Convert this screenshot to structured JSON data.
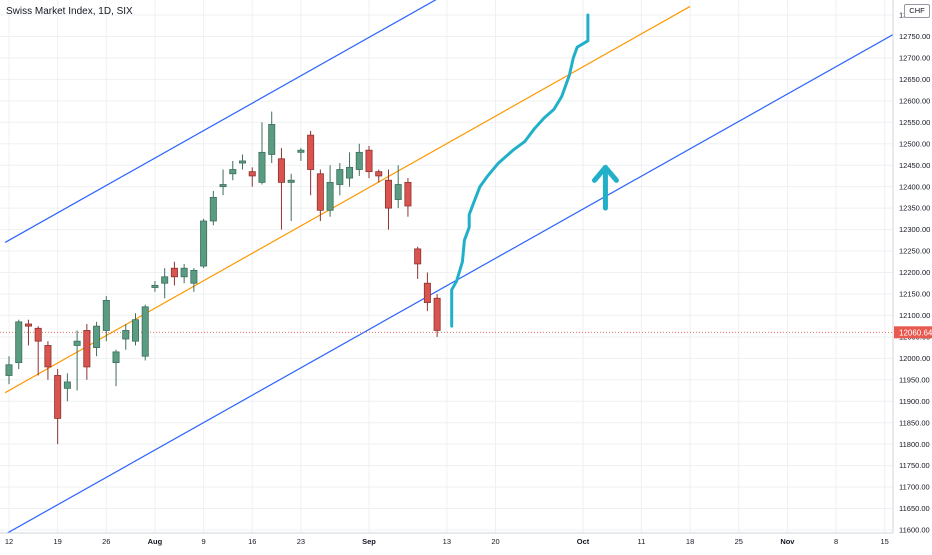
{
  "chart_data": {
    "type": "candlestick",
    "title": "Swiss Market Index, 1D, SIX",
    "currency": "CHF",
    "last_price_label": "12060.64",
    "y_ticks": [
      11600,
      11650,
      11700,
      11750,
      11800,
      11850,
      11900,
      11950,
      12000,
      12050,
      12100,
      12150,
      12200,
      12250,
      12300,
      12350,
      12400,
      12450,
      12500,
      12550,
      12600,
      12650,
      12700,
      12750,
      12800
    ],
    "y_tick_labels": [
      "11600.00",
      "11650.00",
      "11700.00",
      "11750.00",
      "11800.00",
      "11850.00",
      "11900.00",
      "11950.00",
      "12000.00",
      "12050.00",
      "12100.00",
      "12150.00",
      "12200.00",
      "12250.00",
      "12300.00",
      "12350.00",
      "12400.00",
      "12450.00",
      "12500.00",
      "12550.00",
      "12600.00",
      "12650.00",
      "12700.00",
      "12750.00",
      "12800.00"
    ],
    "x_ticks": [
      {
        "index": 0,
        "label": "12",
        "bold": false
      },
      {
        "index": 5,
        "label": "19",
        "bold": false
      },
      {
        "index": 10,
        "label": "26",
        "bold": false
      },
      {
        "index": 15,
        "label": "Aug",
        "bold": true
      },
      {
        "index": 20,
        "label": "9",
        "bold": false
      },
      {
        "index": 25,
        "label": "16",
        "bold": false
      },
      {
        "index": 30,
        "label": "23",
        "bold": false
      },
      {
        "index": 37,
        "label": "Sep",
        "bold": true
      },
      {
        "index": 45,
        "label": "13",
        "bold": false
      },
      {
        "index": 50,
        "label": "20",
        "bold": false
      },
      {
        "index": 59,
        "label": "Oct",
        "bold": true
      },
      {
        "index": 65,
        "label": "11",
        "bold": false
      },
      {
        "index": 70,
        "label": "18",
        "bold": false
      },
      {
        "index": 75,
        "label": "25",
        "bold": false
      },
      {
        "index": 80,
        "label": "Nov",
        "bold": true
      },
      {
        "index": 85,
        "label": "8",
        "bold": false
      },
      {
        "index": 90,
        "label": "15",
        "bold": false
      }
    ],
    "candles": [
      {
        "i": 0,
        "o": 11960,
        "h": 12005,
        "l": 11940,
        "c": 11985
      },
      {
        "i": 1,
        "o": 11990,
        "h": 12090,
        "l": 11975,
        "c": 12085
      },
      {
        "i": 2,
        "o": 12080,
        "h": 12090,
        "l": 12030,
        "c": 12075
      },
      {
        "i": 3,
        "o": 12070,
        "h": 12075,
        "l": 11960,
        "c": 12040
      },
      {
        "i": 4,
        "o": 12030,
        "h": 12040,
        "l": 11950,
        "c": 11980
      },
      {
        "i": 5,
        "o": 11960,
        "h": 11975,
        "l": 11800,
        "c": 11860
      },
      {
        "i": 6,
        "o": 11930,
        "h": 11965,
        "l": 11900,
        "c": 11945
      },
      {
        "i": 7,
        "o": 12030,
        "h": 12065,
        "l": 11925,
        "c": 12040
      },
      {
        "i": 8,
        "o": 12065,
        "h": 12080,
        "l": 11950,
        "c": 11980
      },
      {
        "i": 9,
        "o": 12025,
        "h": 12085,
        "l": 12005,
        "c": 12075
      },
      {
        "i": 10,
        "o": 12065,
        "h": 12145,
        "l": 12040,
        "c": 12135
      },
      {
        "i": 11,
        "o": 11990,
        "h": 12020,
        "l": 11935,
        "c": 12015
      },
      {
        "i": 12,
        "o": 12045,
        "h": 12080,
        "l": 12020,
        "c": 12065
      },
      {
        "i": 13,
        "o": 12040,
        "h": 12105,
        "l": 12030,
        "c": 12090
      },
      {
        "i": 14,
        "o": 12005,
        "h": 12125,
        "l": 11995,
        "c": 12120
      },
      {
        "i": 15,
        "o": 12165,
        "h": 12180,
        "l": 12155,
        "c": 12170
      },
      {
        "i": 16,
        "o": 12175,
        "h": 12210,
        "l": 12140,
        "c": 12190
      },
      {
        "i": 17,
        "o": 12210,
        "h": 12225,
        "l": 12170,
        "c": 12190
      },
      {
        "i": 18,
        "o": 12190,
        "h": 12220,
        "l": 12175,
        "c": 12210
      },
      {
        "i": 19,
        "o": 12175,
        "h": 12210,
        "l": 12155,
        "c": 12205
      },
      {
        "i": 20,
        "o": 12215,
        "h": 12325,
        "l": 12210,
        "c": 12320
      },
      {
        "i": 21,
        "o": 12320,
        "h": 12390,
        "l": 12310,
        "c": 12375
      },
      {
        "i": 22,
        "o": 12400,
        "h": 12440,
        "l": 12380,
        "c": 12405
      },
      {
        "i": 23,
        "o": 12430,
        "h": 12460,
        "l": 12415,
        "c": 12440
      },
      {
        "i": 24,
        "o": 12455,
        "h": 12475,
        "l": 12440,
        "c": 12460
      },
      {
        "i": 25,
        "o": 12435,
        "h": 12445,
        "l": 12400,
        "c": 12425
      },
      {
        "i": 26,
        "o": 12410,
        "h": 12550,
        "l": 12405,
        "c": 12480
      },
      {
        "i": 27,
        "o": 12475,
        "h": 12575,
        "l": 12455,
        "c": 12545
      },
      {
        "i": 28,
        "o": 12465,
        "h": 12490,
        "l": 12300,
        "c": 12410
      },
      {
        "i": 29,
        "o": 12410,
        "h": 12430,
        "l": 12320,
        "c": 12415
      },
      {
        "i": 30,
        "o": 12480,
        "h": 12490,
        "l": 12460,
        "c": 12485
      },
      {
        "i": 31,
        "o": 12520,
        "h": 12530,
        "l": 12380,
        "c": 12440
      },
      {
        "i": 32,
        "o": 12430,
        "h": 12440,
        "l": 12320,
        "c": 12345
      },
      {
        "i": 33,
        "o": 12345,
        "h": 12450,
        "l": 12330,
        "c": 12410
      },
      {
        "i": 34,
        "o": 12405,
        "h": 12455,
        "l": 12380,
        "c": 12440
      },
      {
        "i": 35,
        "o": 12420,
        "h": 12480,
        "l": 12400,
        "c": 12445
      },
      {
        "i": 36,
        "o": 12440,
        "h": 12500,
        "l": 12425,
        "c": 12480
      },
      {
        "i": 37,
        "o": 12485,
        "h": 12495,
        "l": 12420,
        "c": 12435
      },
      {
        "i": 38,
        "o": 12435,
        "h": 12440,
        "l": 12410,
        "c": 12425
      },
      {
        "i": 39,
        "o": 12415,
        "h": 12440,
        "l": 12300,
        "c": 12350
      },
      {
        "i": 40,
        "o": 12370,
        "h": 12450,
        "l": 12350,
        "c": 12405
      },
      {
        "i": 41,
        "o": 12410,
        "h": 12420,
        "l": 12330,
        "c": 12355
      },
      {
        "i": 42,
        "o": 12255,
        "h": 12260,
        "l": 12185,
        "c": 12220
      },
      {
        "i": 43,
        "o": 12175,
        "h": 12200,
        "l": 12110,
        "c": 12130
      },
      {
        "i": 44,
        "o": 12140,
        "h": 12150,
        "l": 12050,
        "c": 12065
      }
    ],
    "trend_lines": [
      {
        "name": "upper-channel-line",
        "color": "#2962ff",
        "x1": -0.4,
        "y1": 12270,
        "x2": 45.0,
        "y2": 12850
      },
      {
        "name": "middle-trend-line",
        "color": "#ff9800",
        "x1": -0.4,
        "y1": 11920,
        "x2": 70.0,
        "y2": 12820
      },
      {
        "name": "lower-channel-line",
        "color": "#2962ff",
        "x1": -0.4,
        "y1": 11590,
        "x2": 96.0,
        "y2": 12820
      }
    ],
    "projection_path": [
      [
        45.5,
        12075
      ],
      [
        45.5,
        12160
      ],
      [
        46.0,
        12180
      ],
      [
        46.6,
        12225
      ],
      [
        46.8,
        12275
      ],
      [
        47.3,
        12305
      ],
      [
        47.3,
        12335
      ],
      [
        47.8,
        12365
      ],
      [
        48.4,
        12400
      ],
      [
        49.2,
        12425
      ],
      [
        50.3,
        12455
      ],
      [
        51.8,
        12485
      ],
      [
        53.0,
        12505
      ],
      [
        54.0,
        12535
      ],
      [
        55.0,
        12560
      ],
      [
        56.0,
        12580
      ],
      [
        56.8,
        12610
      ],
      [
        57.6,
        12660
      ],
      [
        58.0,
        12700
      ],
      [
        58.4,
        12725
      ],
      [
        59.5,
        12740
      ],
      [
        59.5,
        12800
      ]
    ],
    "arrow_up": {
      "x": 61.3,
      "y_base": 12350,
      "y_tip": 12445
    }
  },
  "colors": {
    "up": "#5a9c82",
    "down": "#d9534f",
    "projection": "#22b0c9",
    "grid": "#eef0f3",
    "price_line": "#e85a4f"
  }
}
